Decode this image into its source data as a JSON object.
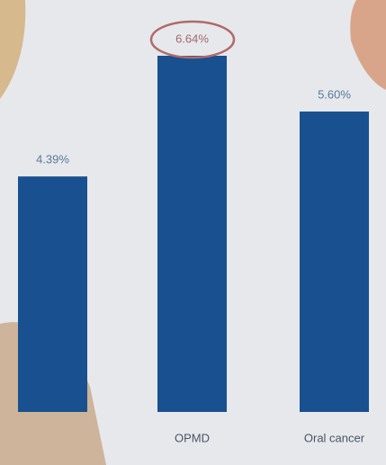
{
  "chart_data": {
    "type": "bar",
    "categories": [
      null,
      "OPMD",
      "Oral cancer"
    ],
    "values": [
      4.39,
      6.64,
      5.6
    ],
    "value_labels": [
      "4.39%",
      "6.64%",
      "5.60%"
    ],
    "color": "#19508f"
  }
}
